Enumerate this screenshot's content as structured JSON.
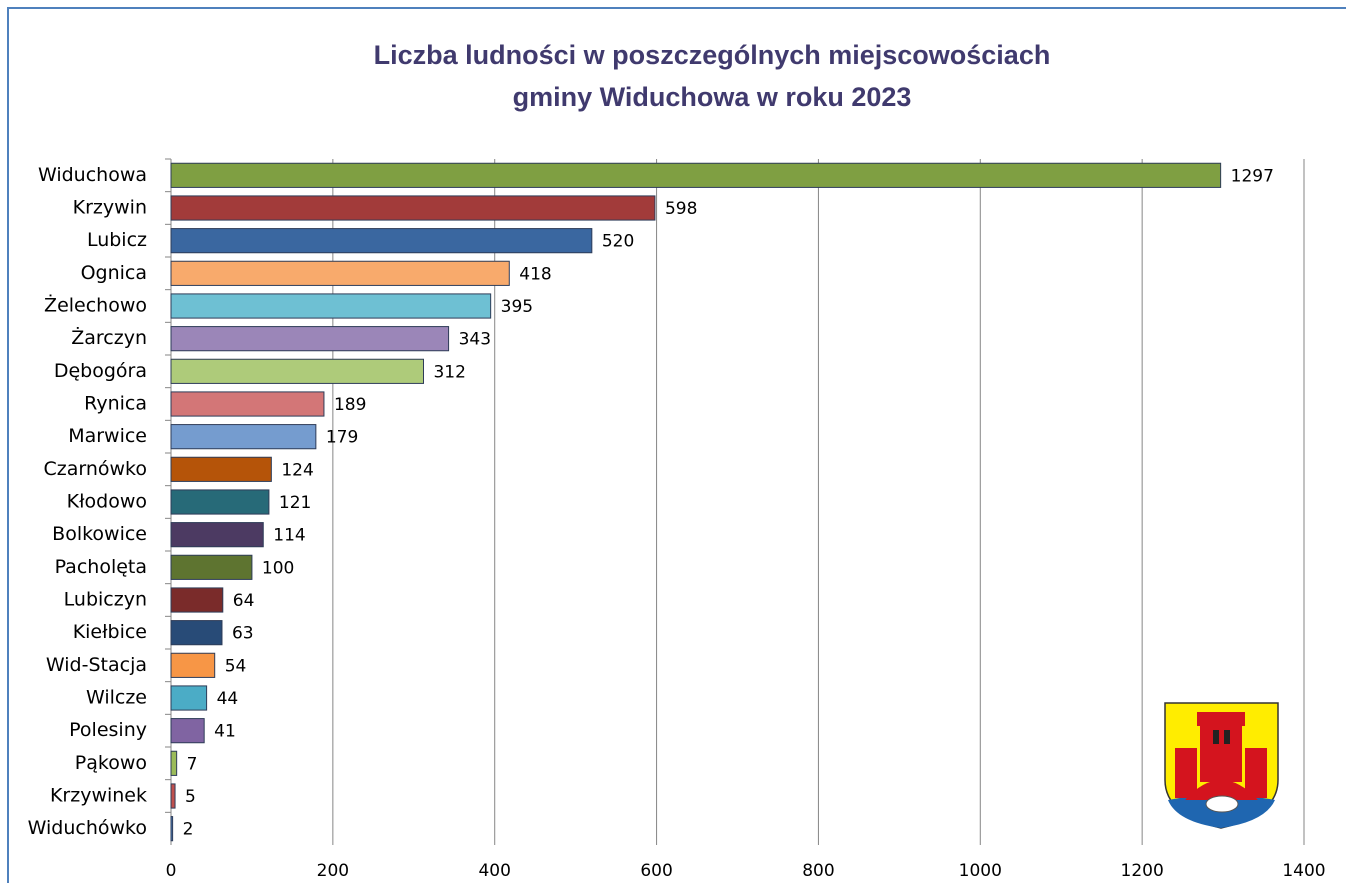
{
  "chart_data": {
    "type": "bar",
    "orientation": "horizontal",
    "title": "Liczba ludności w poszczególnych miejscowościach gminy Widuchowa w roku 2023",
    "categories": [
      "Widuchowa",
      "Krzywin",
      "Lubicz",
      "Ognica",
      "Żelechowo",
      "Żarczyn",
      "Dębogóra",
      "Rynica",
      "Marwice",
      "Czarnówko",
      "Kłodowo",
      "Bolkowice",
      "Pacholęta",
      "Lubiczyn",
      "Kiełbice",
      "Wid-Stacja",
      "Wilcze",
      "Polesiny",
      "Pąkowo",
      "Krzywinek",
      "Widuchówko"
    ],
    "values": [
      1297,
      598,
      520,
      418,
      395,
      343,
      312,
      189,
      179,
      124,
      121,
      114,
      100,
      64,
      63,
      54,
      44,
      41,
      7,
      5,
      2
    ],
    "colors": [
      "#7f9f42",
      "#a23b3a",
      "#3a67a0",
      "#f8aa6c",
      "#6ec0d3",
      "#9b86b8",
      "#aecb7a",
      "#d37677",
      "#759ccf",
      "#b55409",
      "#276a78",
      "#4c3a62",
      "#5e7430",
      "#7a2b2a",
      "#284b77",
      "#f79646",
      "#4bacc6",
      "#8064a2",
      "#9bbb59",
      "#c0504d",
      "#4f81bd"
    ],
    "xlim": [
      0,
      1400
    ],
    "xticks": [
      0,
      200,
      400,
      600,
      800,
      1000,
      1200,
      1400
    ],
    "grid": true
  }
}
